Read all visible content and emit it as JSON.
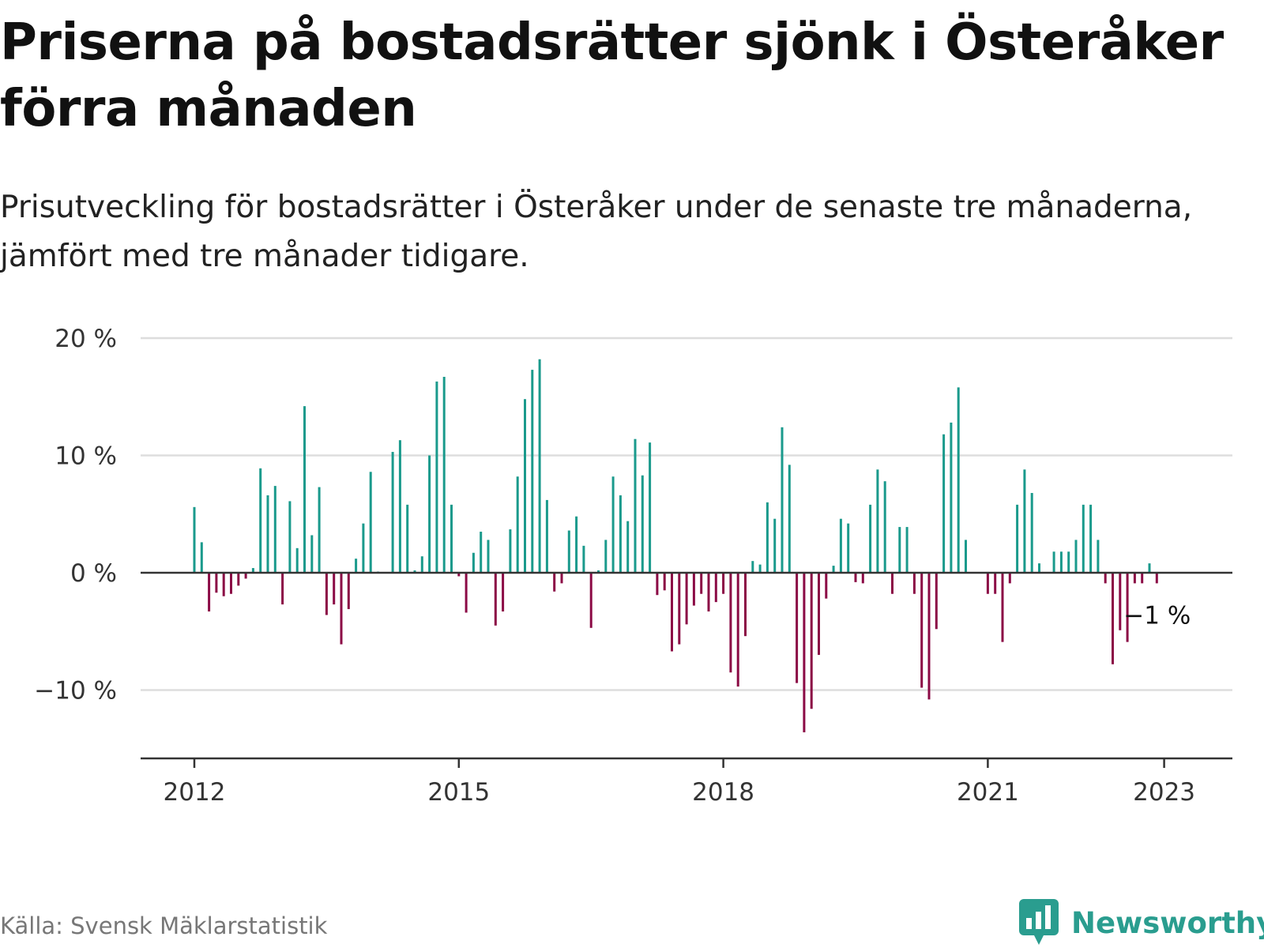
{
  "header": {
    "title": "Priserna på bostadsrätter sjönk i Österåker förra månaden",
    "subtitle": "Prisutveckling för bostadsrätter i Österåker under de senaste tre månaderna, jämfört med tre månader tidigare."
  },
  "footer": {
    "source": "Källa: Svensk Mäklarstatistik",
    "brand": "Newsworthy",
    "brand_icon": "bar-chart-speech-bubble-icon"
  },
  "colors": {
    "positive": "#1a9a8c",
    "negative": "#8b0a45",
    "grid": "#dddddd",
    "axis": "#333333",
    "brand": "#2a9d8f"
  },
  "chart_data": {
    "type": "bar",
    "unit": "%",
    "ylim": [
      -16,
      20
    ],
    "yticks": [
      20,
      10,
      0,
      -10
    ],
    "ytick_labels": [
      "20 %",
      "10 %",
      "0 %",
      "−10 %"
    ],
    "xtick_labels": [
      "2012",
      "2015",
      "2018",
      "2021",
      "2023"
    ],
    "x_start": "2012-01",
    "grid": true,
    "annotation": {
      "label": "−1 %",
      "target": "last"
    },
    "values": [
      5.6,
      2.6,
      -3.3,
      -1.7,
      -2.0,
      -1.8,
      -1.1,
      -0.5,
      0.4,
      8.9,
      6.6,
      7.4,
      -2.7,
      6.1,
      2.1,
      14.2,
      3.2,
      7.3,
      -3.6,
      -2.7,
      -6.1,
      -3.1,
      1.2,
      4.2,
      8.6,
      0.1,
      0,
      10.3,
      11.3,
      5.8,
      0.2,
      1.4,
      10.0,
      16.3,
      16.7,
      5.8,
      -0.3,
      -3.4,
      1.7,
      3.5,
      2.8,
      -4.5,
      -3.3,
      3.7,
      8.2,
      14.8,
      17.3,
      18.2,
      6.2,
      -1.6,
      -0.9,
      3.6,
      4.8,
      2.3,
      -4.7,
      0.2,
      2.8,
      8.2,
      6.6,
      4.4,
      11.4,
      8.3,
      11.1,
      -1.9,
      -1.5,
      -6.7,
      -6.1,
      -4.4,
      -2.8,
      -1.8,
      -3.3,
      -2.5,
      -1.8,
      -8.5,
      -9.7,
      -5.4,
      1.0,
      0.7,
      6.0,
      4.6,
      12.4,
      9.2,
      -9.4,
      -13.6,
      -11.6,
      -7.0,
      -2.2,
      0.6,
      4.6,
      4.2,
      -0.8,
      -0.9,
      5.8,
      8.8,
      7.8,
      -1.8,
      3.9,
      3.9,
      -1.8,
      -9.8,
      -10.8,
      -4.8,
      11.8,
      12.8,
      15.8,
      2.8,
      0,
      0,
      -1.8,
      -1.8,
      -5.9,
      -0.9,
      5.8,
      8.8,
      6.8,
      0.8,
      0,
      1.8,
      1.8,
      1.8,
      2.8,
      5.8,
      5.8,
      2.8,
      -0.9,
      -7.8,
      -4.9,
      -5.9,
      -0.9,
      -0.9,
      0.8,
      -0.9
    ]
  }
}
